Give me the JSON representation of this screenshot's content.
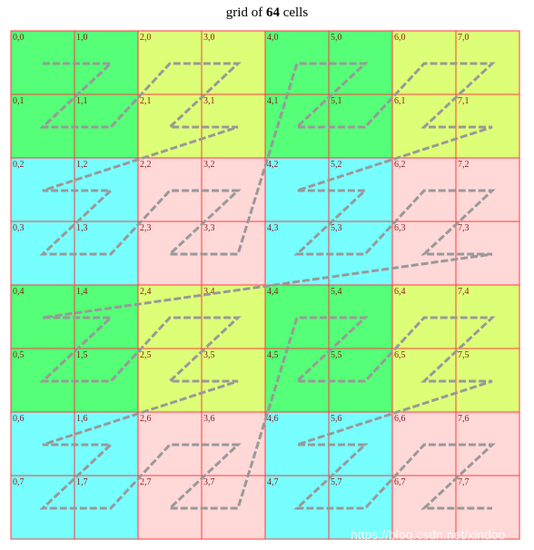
{
  "title": {
    "prefix": "grid of ",
    "count": "64",
    "suffix": " cells"
  },
  "grid": {
    "cols": 8,
    "rows": 8,
    "colors": {
      "green": "#55ff77",
      "yellow": "#ddff77",
      "cyan": "#77ffff",
      "pink": "#ffd8d8",
      "border": "#ff3b3b",
      "path": "#999999"
    },
    "block_pattern": [
      [
        "green",
        "yellow"
      ],
      [
        "cyan",
        "pink"
      ]
    ],
    "labels": [
      [
        "0,0",
        "1,0",
        "2,0",
        "3,0",
        "4,0",
        "5,0",
        "6,0",
        "7,0"
      ],
      [
        "0,1",
        "1,1",
        "2,1",
        "3,1",
        "4,1",
        "5,1",
        "6,1",
        "7,1"
      ],
      [
        "0,2",
        "1,2",
        "2,2",
        "3,2",
        "4,2",
        "5,2",
        "6,2",
        "7,2"
      ],
      [
        "0,3",
        "1,3",
        "2,3",
        "3,3",
        "4,3",
        "5,3",
        "6,3",
        "7,3"
      ],
      [
        "0,4",
        "1,4",
        "2,4",
        "3,4",
        "4,4",
        "5,4",
        "6,4",
        "7,4"
      ],
      [
        "0,5",
        "1,5",
        "2,5",
        "3,5",
        "4,5",
        "5,5",
        "6,5",
        "7,5"
      ],
      [
        "0,6",
        "1,6",
        "2,6",
        "3,6",
        "4,6",
        "5,6",
        "6,6",
        "7,6"
      ],
      [
        "0,7",
        "1,7",
        "2,7",
        "3,7",
        "4,7",
        "5,7",
        "6,7",
        "7,7"
      ]
    ]
  },
  "watermark": "https://blog.csdn.net/xindoo"
}
